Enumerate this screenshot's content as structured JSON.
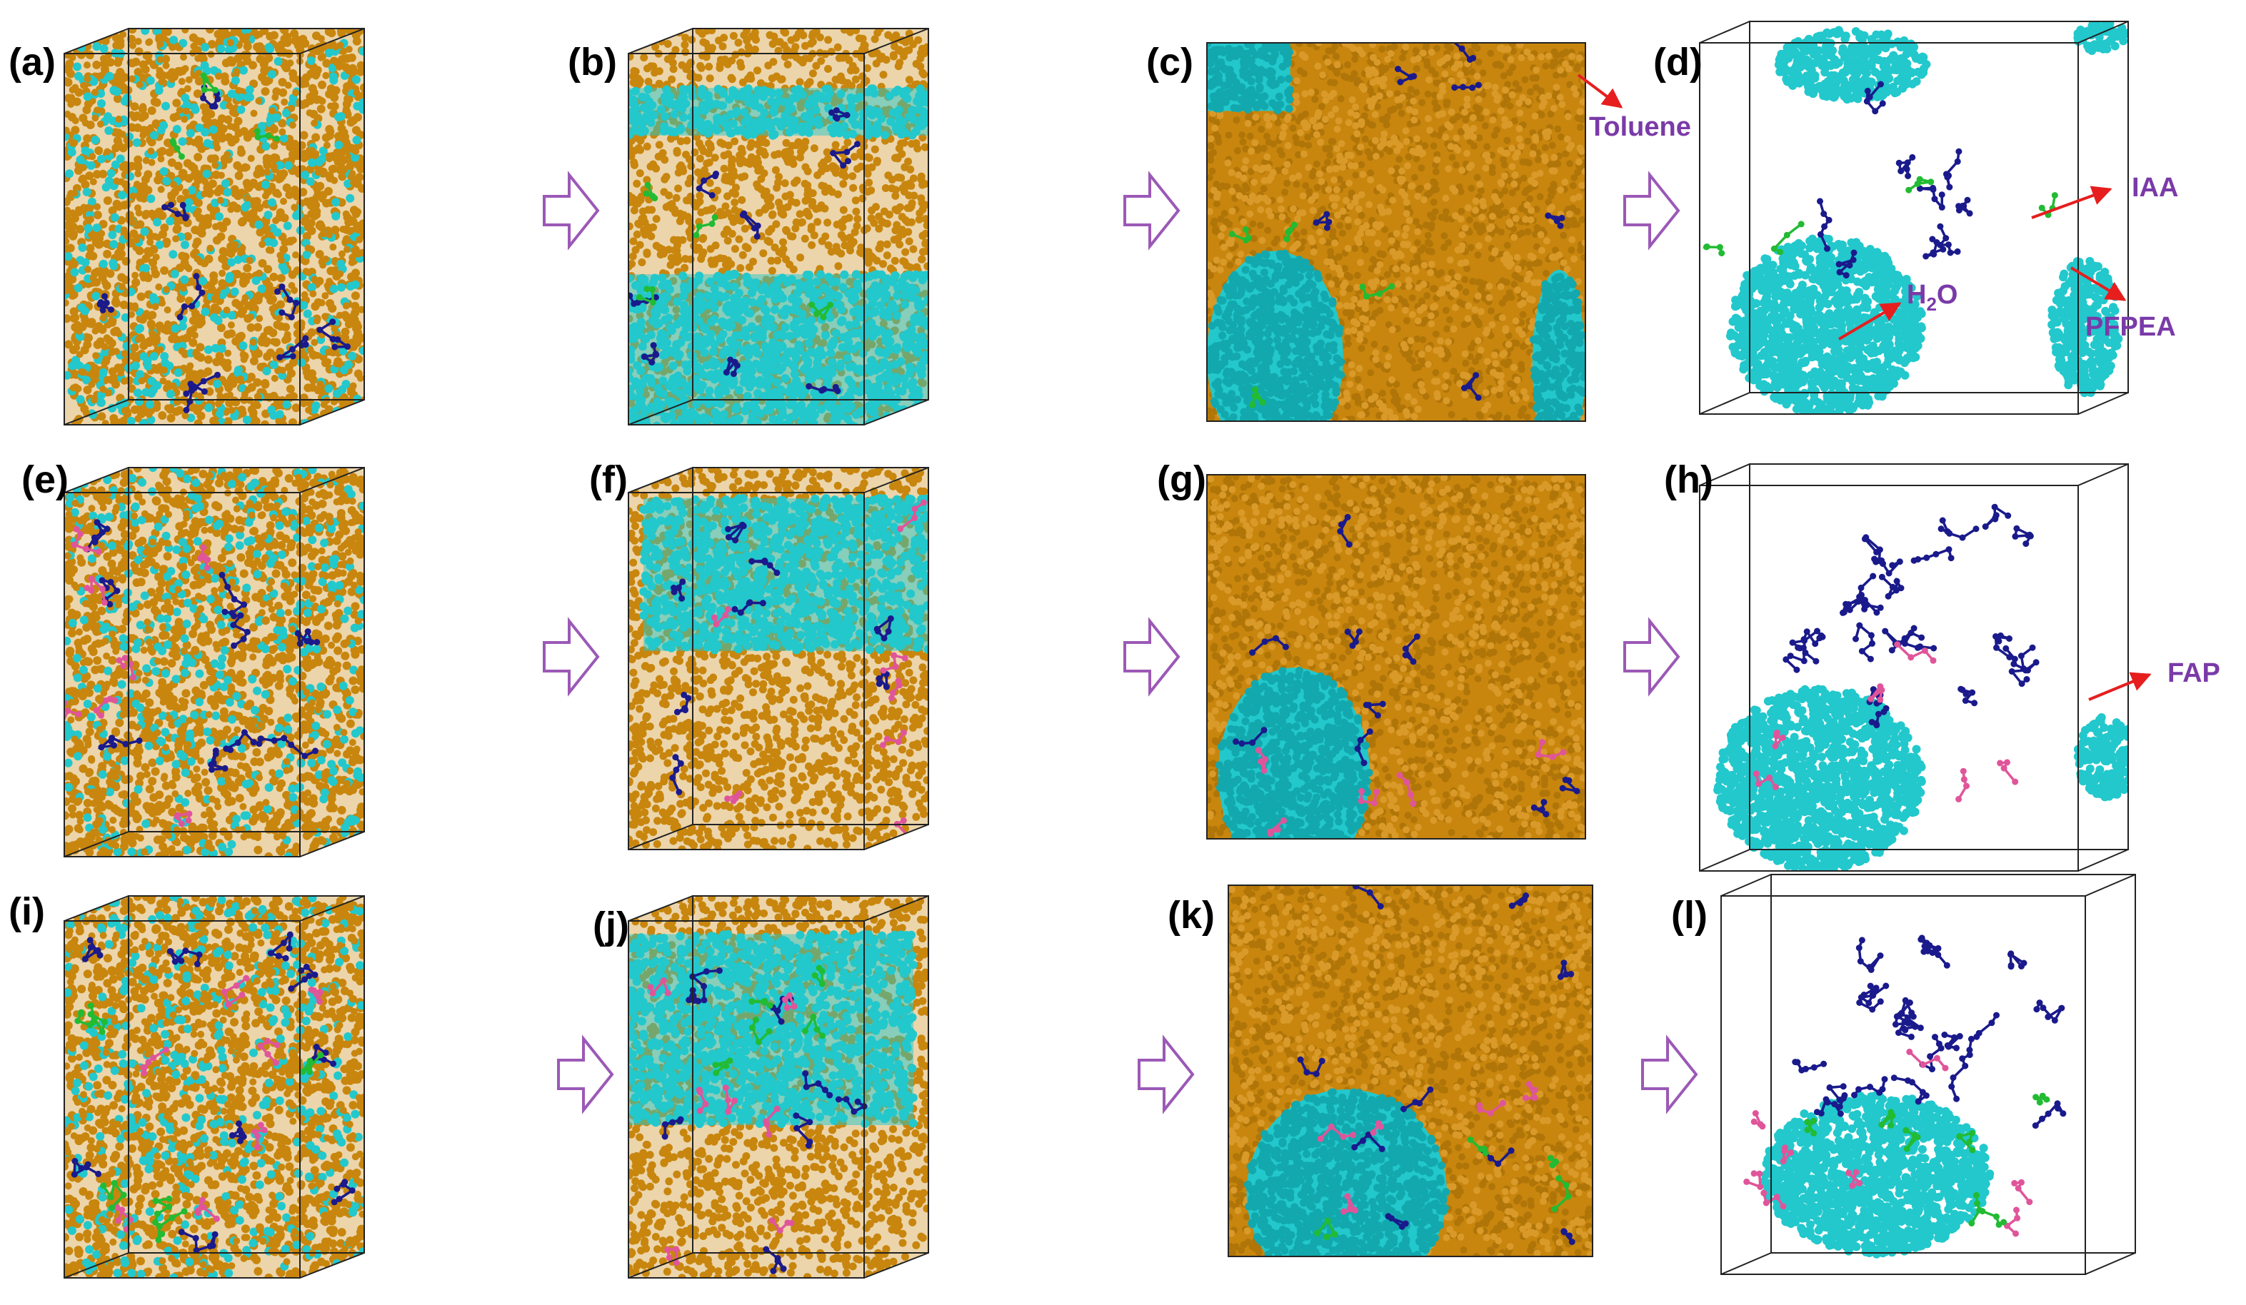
{
  "panel_labels": [
    "(a)",
    "(b)",
    "(c)",
    "(d)",
    "(e)",
    "(f)",
    "(g)",
    "(h)",
    "(i)",
    "(j)",
    "(k)",
    "(l)"
  ],
  "annotations": {
    "toluene": "Toluene",
    "iaa": "IAA",
    "h2o_main": "H",
    "h2o_sub": "2",
    "h2o_tail": "O",
    "pfpea": "PFPEA",
    "fap": "FAP"
  },
  "colors": {
    "toluene": "#c8860e",
    "water": "#22c8cc",
    "iaa": "#1a1a8c",
    "pfpea": "#22bb33",
    "fap": "#e0559a",
    "arrow_red": "#e61e1e",
    "transition_arrow": "#9b59b6",
    "annotation": "#7a3aa8"
  },
  "icons": {
    "transition": "hollow-right-arrow-icon",
    "pointer": "red-arrow-icon"
  }
}
